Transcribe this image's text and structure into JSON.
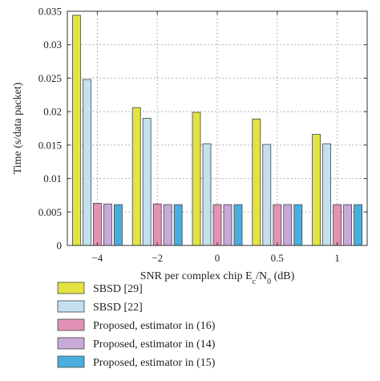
{
  "chart_data": {
    "type": "bar",
    "categories": [
      "−4",
      "−2",
      "0",
      "0.5",
      "1"
    ],
    "series": [
      {
        "name": "SBSD [29]",
        "values": [
          0.0344,
          0.0206,
          0.0199,
          0.0189,
          0.0166
        ],
        "color": "#e3e342"
      },
      {
        "name": "SBSD [22]",
        "values": [
          0.0248,
          0.019,
          0.0152,
          0.0151,
          0.0152
        ],
        "color": "#c3e0ee"
      },
      {
        "name": "Proposed, estimator in (16)",
        "values": [
          0.0063,
          0.0062,
          0.0061,
          0.0061,
          0.0061
        ],
        "color": "#e292b5"
      },
      {
        "name": "Proposed, estimator in (14)",
        "values": [
          0.0062,
          0.0061,
          0.0061,
          0.0061,
          0.0061
        ],
        "color": "#c8aad8"
      },
      {
        "name": "Proposed, estimator in (15)",
        "values": [
          0.0061,
          0.0061,
          0.0061,
          0.0061,
          0.0061
        ],
        "color": "#49aede"
      }
    ],
    "ylim": [
      0,
      0.035
    ],
    "yticks": [
      "0",
      "0.005",
      "0.01",
      "0.015",
      "0.02",
      "0.025",
      "0.03",
      "0.035"
    ],
    "xlabel": {
      "main": "SNR per complex chip E",
      "sub_c": "c",
      "mid": "/N",
      "sub_0": "0",
      "end": " (dB)"
    },
    "ylabel": "Time (s/data packet)",
    "grid": true,
    "legend_position": "below"
  }
}
